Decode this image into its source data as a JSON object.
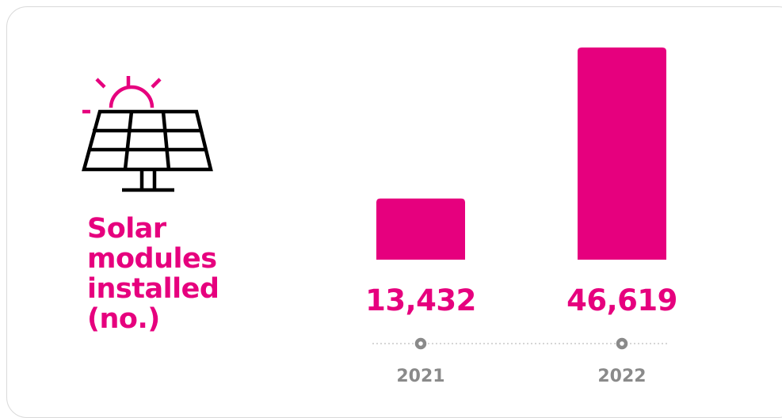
{
  "colors": {
    "accent": "#e6007e",
    "icon_line": "#000000",
    "axis": "#c8c8c8",
    "marker": "#8a8a8a",
    "tick_text": "#8a8a8a"
  },
  "icon": {
    "name": "solar-panel-icon"
  },
  "chart_data": {
    "type": "bar",
    "title": "Solar modules installed (no.)",
    "title_lines": [
      "Solar",
      "modules",
      "installed",
      "(no.)"
    ],
    "categories": [
      "2021",
      "2022"
    ],
    "values": [
      13432,
      46619
    ],
    "value_labels": [
      "13,432",
      "46,619"
    ],
    "ylim": [
      0,
      46619
    ],
    "grid": false,
    "legend": "none"
  }
}
